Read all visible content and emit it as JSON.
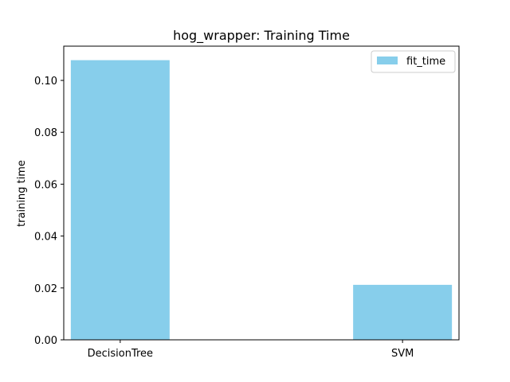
{
  "chart_data": {
    "type": "bar",
    "title": "hog_wrapper: Training Time",
    "xlabel": "",
    "ylabel": "training time",
    "categories": [
      "DecisionTree",
      "SVM"
    ],
    "series": [
      {
        "name": "fit_time",
        "values": [
          0.1078,
          0.0212
        ],
        "color": "#87ceeb"
      }
    ],
    "ylim": [
      0,
      0.1132
    ],
    "yticks": [
      0.0,
      0.02,
      0.04,
      0.06,
      0.08,
      0.1
    ],
    "ytick_labels": [
      "0.00",
      "0.02",
      "0.04",
      "0.06",
      "0.08",
      "0.10"
    ],
    "grid": false,
    "legend_position": "top-right"
  }
}
